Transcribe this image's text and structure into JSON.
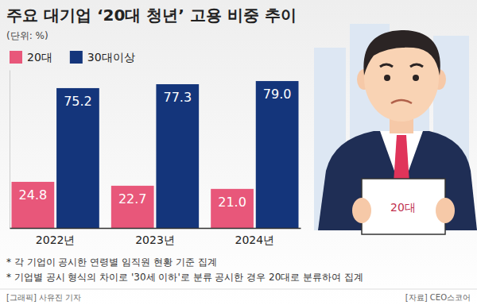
{
  "chart_data": {
    "type": "bar",
    "title": "주요 대기업 ‘20대 청년’ 고용 비중 추이",
    "subtitle": "(단위: %)",
    "categories": [
      "2022년",
      "2023년",
      "2024년"
    ],
    "series": [
      {
        "name": "20대",
        "color": "#e8577a",
        "values": [
          24.8,
          22.7,
          21.0
        ],
        "value_labels": [
          "24.8",
          "22.7",
          "21.0"
        ]
      },
      {
        "name": "30대이상",
        "color": "#14357b",
        "values": [
          75.2,
          77.3,
          79.0
        ],
        "value_labels": [
          "75.2",
          "77.3",
          "79.0"
        ]
      }
    ],
    "ylim": [
      0,
      85
    ],
    "tick_labels": "x",
    "data_labels": true,
    "grid": false,
    "legend": "top-left",
    "notes": [
      "* 각 기업이 공시한 연령별 임직원 현황 기준 집계",
      "* 기업별 공시 형식의 차이로 '30세 이하'로 분류 공시한 경우 20대로 분류하여 집계"
    ],
    "credit": "[그래픽] 사유진 기자",
    "source": "[자료] CEO스코어",
    "illustration_label": "20대"
  }
}
